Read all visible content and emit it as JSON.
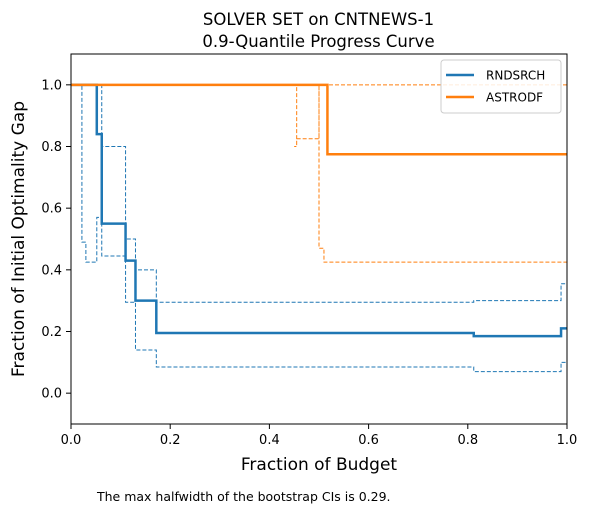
{
  "chart_data": {
    "type": "line",
    "title": [
      "SOLVER SET on CNTNEWS-1",
      "0.9-Quantile Progress Curve"
    ],
    "xlabel": "Fraction of Budget",
    "ylabel": "Fraction of Initial Optimality Gap",
    "xlim": [
      0,
      1
    ],
    "ylim": [
      -0.1,
      1.1
    ],
    "x_ticks": [
      "0.0",
      "0.2",
      "0.4",
      "0.6",
      "0.8",
      "1.0"
    ],
    "y_ticks": [
      "0.0",
      "0.2",
      "0.4",
      "0.6",
      "0.8",
      "1.0"
    ],
    "legend_position": "top-right",
    "series": [
      {
        "name": "RNDSRCH",
        "color": "#1f77b4",
        "points": [
          [
            0,
            1.0
          ],
          [
            0.052,
            1.0
          ],
          [
            0.052,
            0.84
          ],
          [
            0.062,
            0.84
          ],
          [
            0.062,
            0.55
          ],
          [
            0.11,
            0.55
          ],
          [
            0.11,
            0.43
          ],
          [
            0.13,
            0.43
          ],
          [
            0.13,
            0.3
          ],
          [
            0.172,
            0.3
          ],
          [
            0.172,
            0.195
          ],
          [
            0.812,
            0.195
          ],
          [
            0.812,
            0.185
          ],
          [
            0.988,
            0.185
          ],
          [
            0.988,
            0.21
          ],
          [
            1.0,
            0.21
          ]
        ],
        "ci_upper": [
          [
            0,
            1.0
          ],
          [
            0.052,
            1.0
          ],
          [
            0.052,
            1.0
          ],
          [
            0.062,
            1.0
          ],
          [
            0.062,
            0.8
          ],
          [
            0.11,
            0.8
          ],
          [
            0.11,
            0.5
          ],
          [
            0.13,
            0.5
          ],
          [
            0.13,
            0.4
          ],
          [
            0.172,
            0.4
          ],
          [
            0.172,
            0.295
          ],
          [
            0.812,
            0.295
          ],
          [
            0.812,
            0.3
          ],
          [
            0.988,
            0.3
          ],
          [
            0.988,
            0.355
          ],
          [
            1.0,
            0.355
          ]
        ],
        "ci_lower": [
          [
            0,
            1.0
          ],
          [
            0.022,
            1.0
          ],
          [
            0.022,
            0.49
          ],
          [
            0.03,
            0.49
          ],
          [
            0.03,
            0.425
          ],
          [
            0.052,
            0.425
          ],
          [
            0.052,
            0.57
          ],
          [
            0.062,
            0.57
          ],
          [
            0.062,
            0.445
          ],
          [
            0.11,
            0.445
          ],
          [
            0.11,
            0.295
          ],
          [
            0.13,
            0.295
          ],
          [
            0.13,
            0.14
          ],
          [
            0.172,
            0.14
          ],
          [
            0.172,
            0.085
          ],
          [
            0.812,
            0.085
          ],
          [
            0.812,
            0.07
          ],
          [
            0.988,
            0.07
          ],
          [
            0.988,
            0.1
          ],
          [
            1.0,
            0.1
          ]
        ]
      },
      {
        "name": "ASTRODF",
        "color": "#ff7f0e",
        "points": [
          [
            0,
            1.0
          ],
          [
            0.517,
            1.0
          ],
          [
            0.517,
            0.775
          ],
          [
            1.0,
            0.775
          ]
        ],
        "ci_upper": [
          [
            0,
            1.0
          ],
          [
            1.0,
            1.0
          ]
        ],
        "ci_lower": [
          [
            0,
            1.0
          ],
          [
            0.455,
            1.0
          ],
          [
            0.455,
            0.8
          ],
          [
            0.45,
            0.8
          ],
          [
            0.455,
            0.8
          ],
          [
            0.455,
            0.825
          ],
          [
            0.5,
            0.825
          ],
          [
            0.5,
            1.0
          ],
          [
            0.5,
            0.47
          ],
          [
            0.51,
            0.47
          ],
          [
            0.51,
            0.425
          ],
          [
            1.0,
            0.425
          ]
        ]
      }
    ],
    "footnote": "The max halfwidth of the bootstrap CIs is 0.29."
  }
}
